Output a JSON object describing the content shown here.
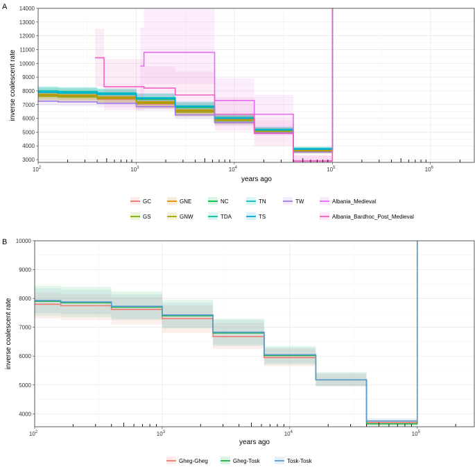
{
  "chart_data": [
    {
      "panel_label": "A",
      "type": "line",
      "xscale": "log",
      "xlabel": "years ago",
      "ylabel": "inverse coalescent rate",
      "xlim": [
        100,
        2800000
      ],
      "ylim": [
        2800,
        14000
      ],
      "x_ticks": [
        100,
        1000,
        10000,
        100000,
        1000000
      ],
      "x_tick_labels": [
        {
          "b": "10",
          "e": "2"
        },
        {
          "b": "10",
          "e": "3"
        },
        {
          "b": "10",
          "e": "4"
        },
        {
          "b": "10",
          "e": "5"
        },
        {
          "b": "10",
          "e": "6"
        }
      ],
      "y_ticks": [
        3000,
        4000,
        5000,
        6000,
        7000,
        8000,
        9000,
        10000,
        11000,
        12000,
        13000,
        14000
      ],
      "y_tick_labels": [
        "3000",
        "4000",
        "5000",
        "6000",
        "7000",
        "8000",
        "9000",
        "10000",
        "11000",
        "12000",
        "13000",
        "14000"
      ],
      "grid": true,
      "legend_position": "bottom",
      "series": [
        {
          "name": "GC",
          "color": "#e8766e",
          "x": [
            100,
            160,
            400,
            1000,
            2500,
            6300,
            16000,
            40000,
            100000
          ],
          "y": [
            7650,
            7600,
            7400,
            7050,
            6500,
            5850,
            5050,
            3600,
            14000
          ],
          "ci": [
            [
              7300,
              8000
            ],
            [
              7250,
              7950
            ],
            [
              7050,
              7750
            ],
            [
              6700,
              7400
            ],
            [
              6150,
              6850
            ],
            [
              5550,
              6150
            ],
            [
              4850,
              5250
            ],
            [
              3450,
              3750
            ],
            [
              14000,
              14000
            ]
          ]
        },
        {
          "name": "GS",
          "color": "#7cae00",
          "x": [
            100,
            160,
            400,
            1000,
            2500,
            6300,
            16000,
            40000,
            100000
          ],
          "y": [
            7700,
            7650,
            7500,
            7150,
            6550,
            5900,
            5100,
            3700,
            14000
          ],
          "ci": [
            [
              7350,
              8050
            ],
            [
              7300,
              8000
            ],
            [
              7150,
              7850
            ],
            [
              6800,
              7500
            ],
            [
              6200,
              6900
            ],
            [
              5600,
              6200
            ],
            [
              4900,
              5300
            ],
            [
              3550,
              3850
            ],
            [
              14000,
              14000
            ]
          ]
        },
        {
          "name": "GNE",
          "color": "#d89000",
          "x": [
            100,
            160,
            400,
            1000,
            2500,
            6300,
            16000,
            40000,
            100000
          ],
          "y": [
            7750,
            7700,
            7550,
            7200,
            6600,
            5900,
            5100,
            3650,
            14000
          ],
          "ci": [
            [
              7400,
              8100
            ],
            [
              7350,
              8050
            ],
            [
              7200,
              7900
            ],
            [
              6850,
              7550
            ],
            [
              6250,
              6950
            ],
            [
              5600,
              6200
            ],
            [
              4900,
              5300
            ],
            [
              3500,
              3800
            ],
            [
              14000,
              14000
            ]
          ]
        },
        {
          "name": "GNW",
          "color": "#a3a500",
          "x": [
            100,
            160,
            400,
            1000,
            2500,
            6300,
            16000,
            40000,
            100000
          ],
          "y": [
            7600,
            7550,
            7450,
            7100,
            6450,
            5850,
            5050,
            3600,
            14000
          ],
          "ci": [
            [
              7250,
              7950
            ],
            [
              7200,
              7900
            ],
            [
              7100,
              7800
            ],
            [
              6750,
              7450
            ],
            [
              6100,
              6800
            ],
            [
              5550,
              6150
            ],
            [
              4850,
              5250
            ],
            [
              3450,
              3750
            ],
            [
              14000,
              14000
            ]
          ]
        },
        {
          "name": "NC",
          "color": "#00bf44",
          "x": [
            100,
            160,
            400,
            1000,
            2500,
            6300,
            16000,
            40000,
            100000
          ],
          "y": [
            7900,
            7850,
            7750,
            7400,
            6800,
            6000,
            5150,
            3750,
            14000
          ],
          "ci": [
            [
              7550,
              8250
            ],
            [
              7500,
              8200
            ],
            [
              7400,
              8100
            ],
            [
              7050,
              7750
            ],
            [
              6450,
              7150
            ],
            [
              5700,
              6300
            ],
            [
              4950,
              5350
            ],
            [
              3600,
              3900
            ],
            [
              14000,
              14000
            ]
          ]
        },
        {
          "name": "TDA",
          "color": "#00bfa0",
          "x": [
            100,
            160,
            400,
            1000,
            2500,
            6300,
            16000,
            40000,
            100000
          ],
          "y": [
            7950,
            7900,
            7800,
            7450,
            6850,
            6050,
            5200,
            3800,
            14000
          ],
          "ci": [
            [
              7600,
              8300
            ],
            [
              7550,
              8250
            ],
            [
              7450,
              8150
            ],
            [
              7100,
              7800
            ],
            [
              6500,
              7200
            ],
            [
              5750,
              6350
            ],
            [
              5000,
              5400
            ],
            [
              3650,
              3950
            ],
            [
              14000,
              14000
            ]
          ]
        },
        {
          "name": "TN",
          "color": "#00c0c0",
          "x": [
            100,
            160,
            400,
            1000,
            2500,
            6300,
            16000,
            40000,
            100000
          ],
          "y": [
            8000,
            7950,
            7850,
            7500,
            6900,
            6050,
            5200,
            3800,
            14000
          ],
          "ci": [
            [
              7650,
              8350
            ],
            [
              7600,
              8300
            ],
            [
              7500,
              8200
            ],
            [
              7150,
              7850
            ],
            [
              6550,
              7250
            ],
            [
              5750,
              6350
            ],
            [
              5000,
              5400
            ],
            [
              3650,
              3950
            ],
            [
              14000,
              14000
            ]
          ]
        },
        {
          "name": "TS",
          "color": "#00a9e0",
          "x": [
            100,
            160,
            400,
            1000,
            2500,
            6300,
            16000,
            40000,
            100000
          ],
          "y": [
            7900,
            7850,
            7750,
            7450,
            6850,
            6000,
            5150,
            3750,
            14000
          ],
          "ci": [
            [
              7550,
              8250
            ],
            [
              7500,
              8200
            ],
            [
              7400,
              8100
            ],
            [
              7100,
              7800
            ],
            [
              6500,
              7200
            ],
            [
              5700,
              6300
            ],
            [
              4950,
              5350
            ],
            [
              3600,
              3900
            ],
            [
              14000,
              14000
            ]
          ]
        },
        {
          "name": "TW",
          "color": "#9e7ae8",
          "x": [
            100,
            160,
            400,
            1000,
            2500,
            6300,
            16000,
            40000,
            100000
          ],
          "y": [
            7250,
            7200,
            7100,
            6850,
            6250,
            5700,
            4950,
            3550,
            14000
          ],
          "ci": [
            [
              6950,
              7550
            ],
            [
              6900,
              7500
            ],
            [
              6800,
              7400
            ],
            [
              6550,
              7150
            ],
            [
              5950,
              6550
            ],
            [
              5450,
              5950
            ],
            [
              4750,
              5150
            ],
            [
              3400,
              3700
            ],
            [
              14000,
              14000
            ]
          ]
        },
        {
          "name": "Albania_Medieval",
          "color": "#e46cf0",
          "x": [
            1100,
            1200,
            6300,
            16000,
            40000,
            100000
          ],
          "y": [
            9800,
            10800,
            7300,
            6300,
            2900,
            14000
          ],
          "ci": [
            [
              7000,
              12600
            ],
            [
              8500,
              14000
            ],
            [
              5900,
              8900
            ],
            [
              5000,
              7700
            ],
            [
              2800,
              3300
            ],
            [
              14000,
              14000
            ]
          ]
        },
        {
          "name": "Albania_Bardhoc_Post_Medieval",
          "color": "#f060c0",
          "x": [
            380,
            470,
            1200,
            2500,
            6300,
            16000,
            40000,
            100000
          ],
          "y": [
            10400,
            8300,
            8200,
            7700,
            6300,
            4900,
            2900,
            14000
          ],
          "ci": [
            [
              8300,
              12500
            ],
            [
              6600,
              10300
            ],
            [
              6700,
              9800
            ],
            [
              6200,
              9400
            ],
            [
              5100,
              7500
            ],
            [
              4000,
              5900
            ],
            [
              2800,
              3300
            ],
            [
              14000,
              14000
            ]
          ]
        }
      ]
    },
    {
      "panel_label": "B",
      "type": "line",
      "xscale": "log",
      "xlabel": "years ago",
      "ylabel": "inverse coalescent rate",
      "xlim": [
        100,
        280000
      ],
      "ylim": [
        3550,
        10000
      ],
      "x_ticks": [
        100,
        1000,
        10000,
        100000
      ],
      "x_tick_labels": [
        {
          "b": "10",
          "e": "2"
        },
        {
          "b": "10",
          "e": "3"
        },
        {
          "b": "10",
          "e": "4"
        },
        {
          "b": "10",
          "e": "5"
        }
      ],
      "y_ticks": [
        4000,
        5000,
        6000,
        7000,
        8000,
        9000,
        10000
      ],
      "y_tick_labels": [
        "4000",
        "5000",
        "6000",
        "7000",
        "8000",
        "9000",
        "10000"
      ],
      "grid": true,
      "legend_position": "bottom",
      "series": [
        {
          "name": "Gheg-Gheg",
          "color": "#f07b72",
          "x": [
            100,
            160,
            400,
            1000,
            2500,
            6300,
            16000,
            40000,
            100000
          ],
          "y": [
            7800,
            7750,
            7620,
            7300,
            6680,
            5950,
            5180,
            3700,
            10000
          ],
          "ci": [
            [
              7300,
              8200
            ],
            [
              7250,
              8150
            ],
            [
              7100,
              8050
            ],
            [
              6800,
              7750
            ],
            [
              6250,
              7150
            ],
            [
              5650,
              6250
            ],
            [
              4950,
              5400
            ],
            [
              3600,
              3800
            ],
            [
              10000,
              10000
            ]
          ]
        },
        {
          "name": "Gheg-Tosk",
          "color": "#22b14c",
          "x": [
            100,
            160,
            400,
            1000,
            2500,
            6300,
            16000,
            40000,
            100000
          ],
          "y": [
            7900,
            7850,
            7700,
            7400,
            6800,
            6020,
            5180,
            3650,
            10000
          ],
          "ci": [
            [
              7400,
              8450
            ],
            [
              7350,
              8400
            ],
            [
              7250,
              8250
            ],
            [
              6950,
              7950
            ],
            [
              6350,
              7300
            ],
            [
              5700,
              6350
            ],
            [
              4950,
              5450
            ],
            [
              3550,
              3750
            ],
            [
              10000,
              10000
            ]
          ]
        },
        {
          "name": "Tosk-Tosk",
          "color": "#5b9bd5",
          "x": [
            100,
            160,
            400,
            1000,
            2500,
            6300,
            16000,
            40000,
            100000
          ],
          "y": [
            7930,
            7880,
            7730,
            7430,
            6830,
            6050,
            5180,
            3750,
            10000
          ],
          "ci": [
            [
              7500,
              8350
            ],
            [
              7450,
              8300
            ],
            [
              7300,
              8150
            ],
            [
              7000,
              7850
            ],
            [
              6400,
              7250
            ],
            [
              5750,
              6300
            ],
            [
              4980,
              5400
            ],
            [
              3650,
              3850
            ],
            [
              10000,
              10000
            ]
          ]
        }
      ]
    }
  ]
}
